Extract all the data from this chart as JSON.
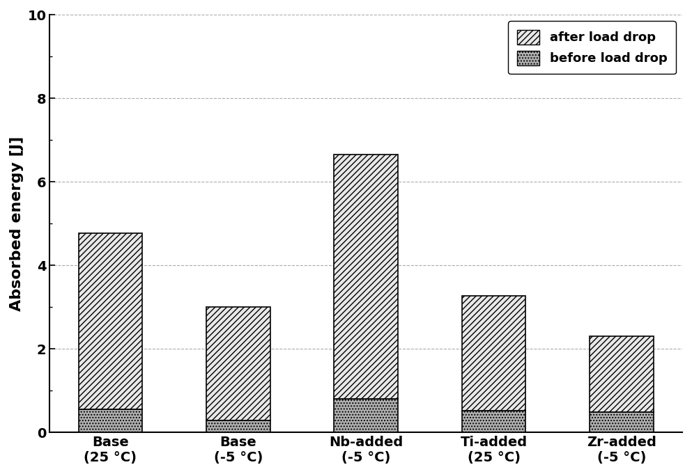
{
  "categories": [
    "Base\n(25 °C)",
    "Base\n(-5 °C)",
    "Nb-added\n(-5 °C)",
    "Ti-added\n(25 °C)",
    "Zr-added\n(-5 °C)"
  ],
  "before_load_drop": [
    0.55,
    0.28,
    0.8,
    0.52,
    0.48
  ],
  "after_load_drop": [
    4.22,
    2.72,
    5.85,
    2.75,
    1.82
  ],
  "ylim": [
    0,
    10
  ],
  "yticks": [
    0,
    2,
    4,
    6,
    8,
    10
  ],
  "ylabel": "Absorbed energy [J]",
  "legend_labels": [
    "after load drop",
    "before load drop"
  ],
  "hatch_after": "////",
  "hatch_before": "....",
  "color_after": "#e8e8e8",
  "color_before": "#b0b0b0",
  "bar_width": 0.5,
  "grid_color": "#aaaaaa",
  "grid_linestyle": "--",
  "background_color": "#ffffff",
  "edge_color": "#000000",
  "legend_fontsize": 13,
  "tick_fontsize": 14,
  "ylabel_fontsize": 16
}
